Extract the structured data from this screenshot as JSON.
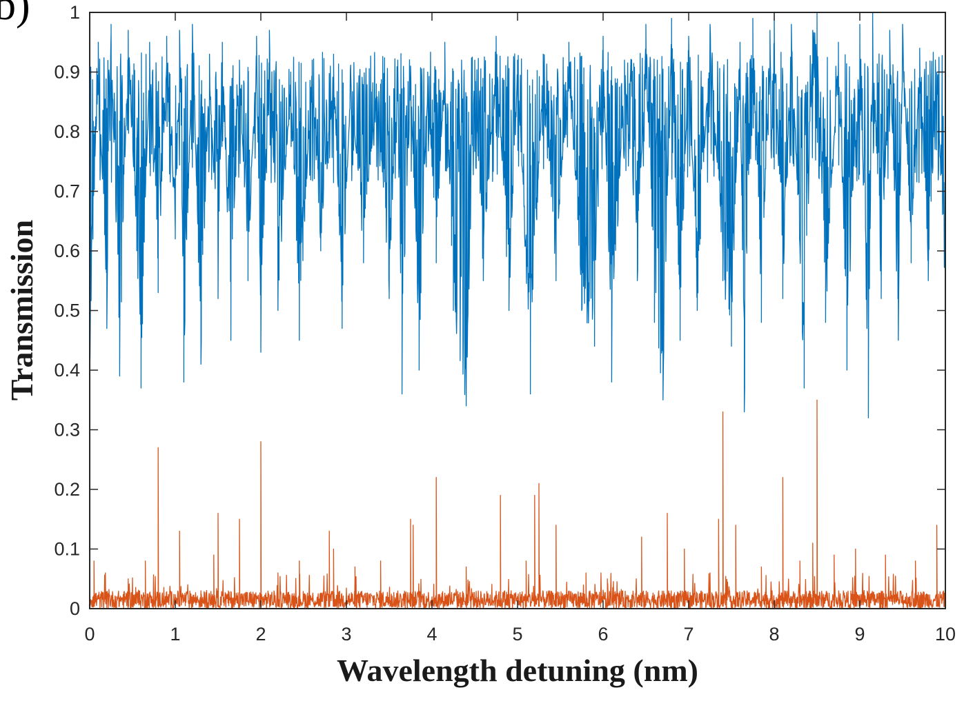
{
  "panel_label": "b)",
  "chart_data": {
    "type": "line",
    "title": "",
    "xlabel": "Wavelength detuning (nm)",
    "ylabel": "Transmission",
    "xlim": [
      0,
      10
    ],
    "ylim": [
      0,
      1
    ],
    "xticks": [
      "0",
      "1",
      "2",
      "3",
      "4",
      "5",
      "6",
      "7",
      "8",
      "9",
      "10"
    ],
    "yticks": [
      "0",
      "0.1",
      "0.2",
      "0.3",
      "0.4",
      "0.5",
      "0.6",
      "0.7",
      "0.8",
      "0.9",
      "1"
    ],
    "grid": false,
    "legend": "none",
    "colors": {
      "series_upper": "#0072bd",
      "series_lower": "#d95319",
      "axes": "#262626"
    },
    "series": [
      {
        "style": "dense noisy line",
        "x": [
          0,
          0.1,
          0.2,
          0.25,
          0.35,
          0.45,
          0.55,
          0.6,
          0.7,
          0.8,
          0.9,
          1.0,
          1.05,
          1.1,
          1.2,
          1.3,
          1.4,
          1.5,
          1.55,
          1.65,
          1.75,
          1.85,
          1.95,
          2.0,
          2.1,
          2.2,
          2.35,
          2.45,
          2.6,
          2.7,
          2.85,
          2.95,
          3.05,
          3.2,
          3.35,
          3.5,
          3.6,
          3.65,
          3.75,
          3.85,
          3.95,
          4.05,
          4.15,
          4.25,
          4.4,
          4.5,
          4.6,
          4.75,
          4.9,
          5.0,
          5.15,
          5.3,
          5.45,
          5.6,
          5.75,
          5.9,
          6.0,
          6.1,
          6.25,
          6.4,
          6.5,
          6.6,
          6.7,
          6.8,
          6.9,
          7.0,
          7.1,
          7.25,
          7.4,
          7.5,
          7.6,
          7.65,
          7.75,
          7.85,
          7.95,
          8.0,
          8.1,
          8.2,
          8.35,
          8.45,
          8.5,
          8.6,
          8.75,
          8.85,
          9.0,
          9.1,
          9.15,
          9.25,
          9.35,
          9.45,
          9.5,
          9.6,
          9.7,
          9.8,
          9.9,
          10.0
        ],
        "y": [
          0.4,
          0.95,
          0.47,
          0.98,
          0.39,
          0.97,
          0.6,
          0.37,
          0.95,
          0.53,
          0.96,
          0.62,
          0.97,
          0.38,
          0.98,
          0.41,
          0.93,
          0.52,
          0.95,
          0.45,
          0.92,
          0.55,
          0.96,
          0.43,
          0.97,
          0.5,
          0.9,
          0.45,
          0.92,
          0.6,
          0.93,
          0.47,
          0.9,
          0.58,
          0.88,
          0.52,
          0.92,
          0.36,
          0.91,
          0.4,
          0.9,
          0.58,
          0.95,
          0.5,
          0.34,
          0.92,
          0.55,
          0.96,
          0.5,
          0.92,
          0.36,
          0.93,
          0.55,
          0.95,
          0.5,
          0.44,
          0.96,
          0.38,
          0.92,
          0.55,
          0.98,
          0.48,
          0.35,
          0.99,
          0.45,
          0.96,
          0.5,
          0.98,
          0.55,
          0.44,
          0.95,
          0.33,
          0.99,
          0.48,
          0.97,
          1.0,
          0.52,
          0.98,
          0.37,
          0.97,
          1.0,
          0.48,
          0.95,
          0.4,
          0.98,
          0.32,
          1.0,
          0.52,
          0.97,
          0.45,
          0.98,
          0.58,
          0.94,
          0.55,
          0.9,
          0.52
        ]
      },
      {
        "style": "dense noisy line with sharp peaks",
        "x": [
          0,
          0.05,
          0.3,
          0.45,
          0.65,
          0.8,
          1.05,
          1.3,
          1.45,
          1.5,
          1.75,
          2.0,
          2.2,
          2.45,
          2.8,
          2.85,
          3.1,
          3.4,
          3.75,
          3.78,
          4.05,
          4.4,
          4.8,
          5.1,
          5.2,
          5.25,
          5.45,
          5.8,
          6.05,
          6.45,
          6.75,
          6.95,
          7.25,
          7.35,
          7.4,
          7.55,
          7.85,
          8.1,
          8.3,
          8.45,
          8.5,
          8.7,
          8.95,
          9.3,
          9.65,
          9.9,
          10.0
        ],
        "y": [
          0.01,
          0.08,
          0.02,
          0.05,
          0.08,
          0.27,
          0.13,
          0.03,
          0.09,
          0.16,
          0.15,
          0.28,
          0.06,
          0.08,
          0.13,
          0.1,
          0.07,
          0.08,
          0.15,
          0.14,
          0.22,
          0.07,
          0.19,
          0.08,
          0.19,
          0.21,
          0.14,
          0.06,
          0.05,
          0.12,
          0.16,
          0.1,
          0.06,
          0.15,
          0.33,
          0.14,
          0.07,
          0.22,
          0.08,
          0.11,
          0.35,
          0.09,
          0.1,
          0.09,
          0.08,
          0.14,
          0.14
        ]
      }
    ]
  }
}
